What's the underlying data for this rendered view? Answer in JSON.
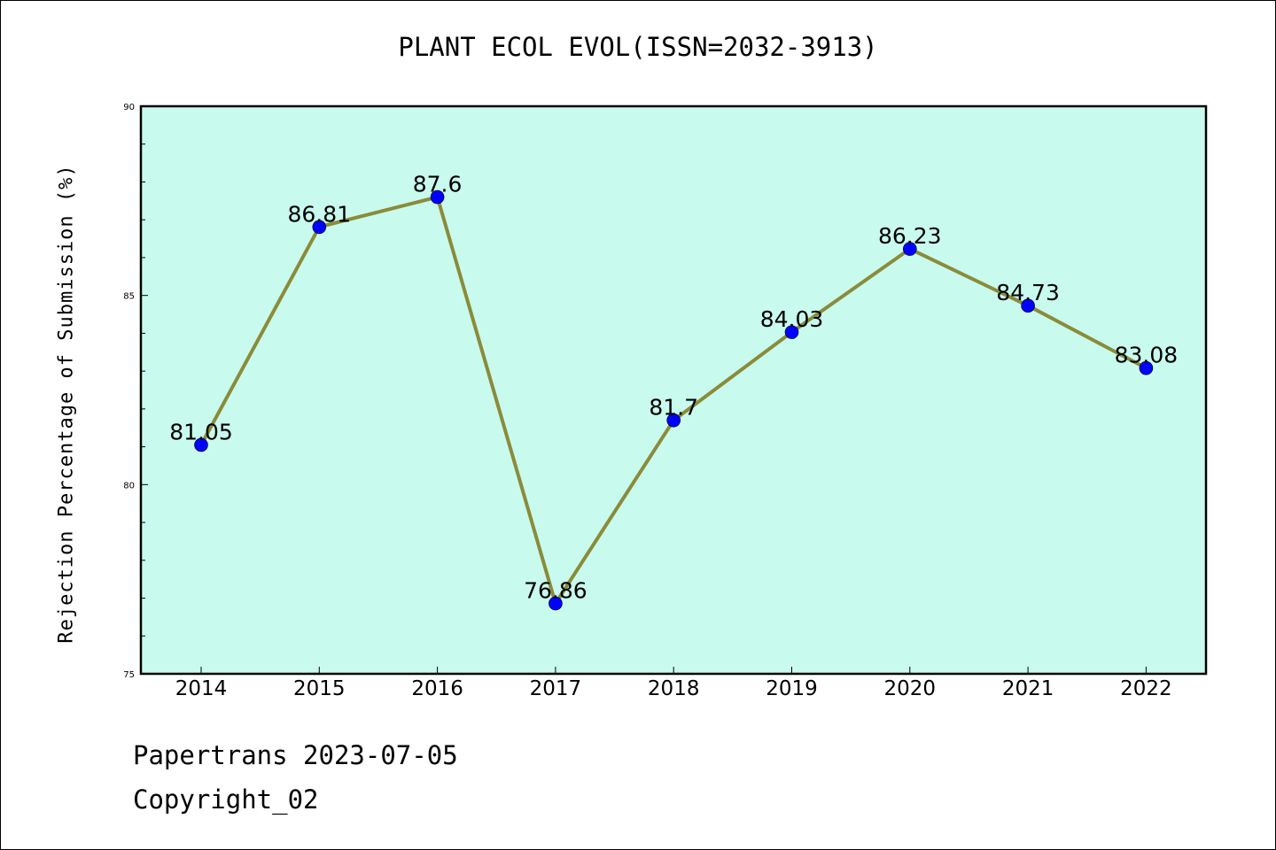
{
  "chart_data": {
    "type": "line",
    "title": "PLANT ECOL EVOL(ISSN=2032-3913)",
    "xlabel": "",
    "ylabel": "Rejection Percentage of Submission (%)",
    "categories": [
      "2014",
      "2015",
      "2016",
      "2017",
      "2018",
      "2019",
      "2020",
      "2021",
      "2022"
    ],
    "series": [
      {
        "values": [
          81.05,
          86.81,
          87.6,
          76.86,
          81.7,
          84.03,
          86.23,
          84.73,
          83.08
        ],
        "labels": [
          "81.05",
          "86.81",
          "87.6",
          "76.86",
          "81.7",
          "84.03",
          "86.23",
          "84.73",
          "83.08"
        ],
        "line_color": "#8B8B3A",
        "marker_color": "#0000FF"
      }
    ],
    "ylim": [
      75,
      90
    ],
    "yticks": [
      "75",
      "80",
      "85",
      "90"
    ],
    "plot_background": "#C8FBEE",
    "grid": false
  },
  "footer": {
    "line1": "Papertrans 2023-07-05",
    "line2": "Copyright_02"
  }
}
